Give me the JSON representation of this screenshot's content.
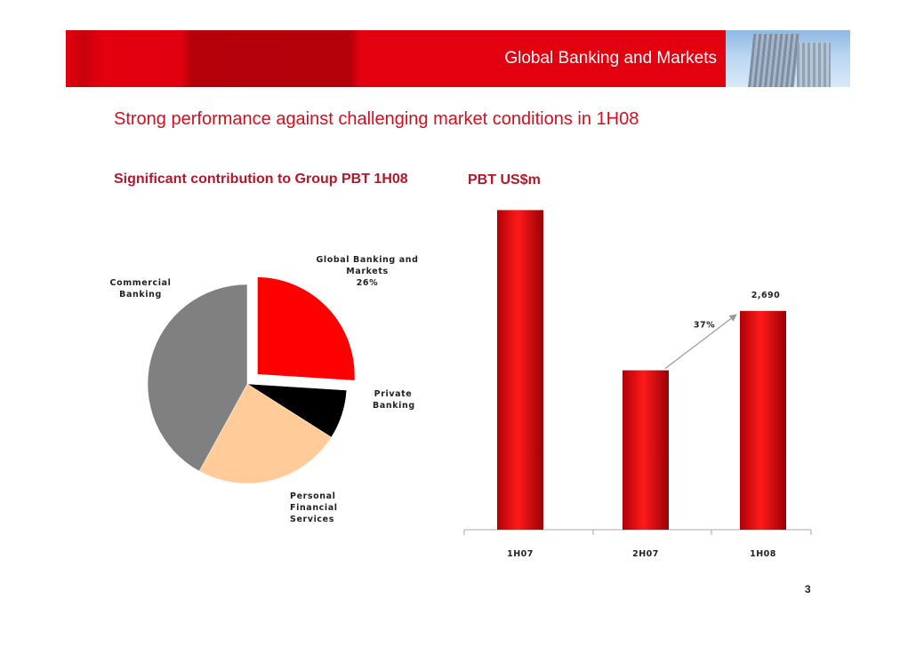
{
  "header": {
    "title": "Global Banking and Markets"
  },
  "headline": "Strong performance against challenging market conditions in 1H08",
  "page_number": "3",
  "chart_data": [
    {
      "type": "pie",
      "title": "Significant contribution to Group PBT 1H08",
      "slices": [
        {
          "label": "Global Banking and Markets\n26%",
          "value": 26,
          "color": "#ff0000",
          "exploded": true
        },
        {
          "label": "Private\nBanking",
          "value": 8,
          "color": "#000000"
        },
        {
          "label": "Personal\nFinancial\nServices",
          "value": 24,
          "color": "#ffcc99"
        },
        {
          "label": "Commercial\nBanking",
          "value": 42,
          "color": "#808080"
        }
      ]
    },
    {
      "type": "bar",
      "title": "PBT US$m",
      "categories": [
        "1H07",
        "2H07",
        "1H08"
      ],
      "values": [
        3930,
        1960,
        2690
      ],
      "data_labels": [
        "",
        "",
        "2,690"
      ],
      "ylim": [
        0,
        4000
      ],
      "annotation": {
        "text": "37%",
        "from": "2H07",
        "to": "1H08"
      },
      "bar_color": "#e3000f",
      "grid": false
    }
  ]
}
